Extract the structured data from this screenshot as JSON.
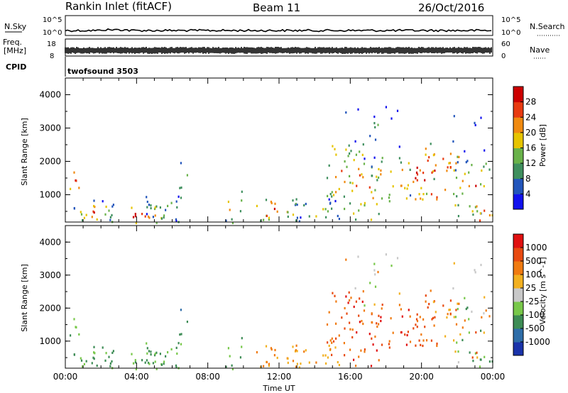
{
  "header": {
    "station": "Rankin Inlet (fitACF)",
    "beam": "Beam 11",
    "date": "26/Oct/2016"
  },
  "strip": {
    "nsky_label": "N.Sky",
    "nsky_top": "10^5",
    "nsky_bottom": "10^0",
    "nsearch_label": "N.Search",
    "nsearch_top": "10^5",
    "nsearch_bottom": "10^0",
    "freq_label": "Freq.",
    "freq_unit": "[MHz]",
    "freq_top": "18",
    "freq_bottom": "8",
    "nave_label": "Nave",
    "nave_top": "60",
    "nave_bottom": "0",
    "cpid_label": "CPID",
    "cpid_value": "twofsound 3503"
  },
  "chart_data": [
    {
      "type": "heatmap",
      "title": "",
      "ylabel": "Slant Range [km]",
      "xlabel": "",
      "ylim": [
        180,
        4500
      ],
      "yticks": [
        1000,
        2000,
        3000,
        4000
      ],
      "colorbar": {
        "label": "Power [dB]",
        "ticks": [
          "4",
          "8",
          "12",
          "16",
          "20",
          "24",
          "28"
        ],
        "colors": [
          "#1111ee",
          "#2255bb",
          "#3f8f5e",
          "#69b24a",
          "#e6c400",
          "#f08a10",
          "#e83a10",
          "#cc0000"
        ]
      },
      "x": [
        "00:00",
        "04:00",
        "08:00",
        "12:00",
        "16:00",
        "20:00",
        "00:00"
      ]
    },
    {
      "type": "heatmap",
      "title": "",
      "ylabel": "Slant Range [km]",
      "xlabel": "Time UT",
      "ylim": [
        180,
        4500
      ],
      "yticks": [
        1000,
        2000,
        3000,
        4000
      ],
      "colorbar": {
        "label": "Velocity [m s^-1]",
        "ticks": [
          "1000",
          "500",
          "100",
          "25",
          "-25",
          "-100",
          "-500",
          "-1000"
        ],
        "colors": [
          "#1a33aa",
          "#2e6da8",
          "#3d8c55",
          "#78c84a",
          "#c8c8c8",
          "#f2b020",
          "#f07a10",
          "#e84a10",
          "#e01010"
        ]
      },
      "x": [
        "00:00",
        "04:00",
        "08:00",
        "12:00",
        "16:00",
        "20:00",
        "00:00"
      ]
    }
  ]
}
